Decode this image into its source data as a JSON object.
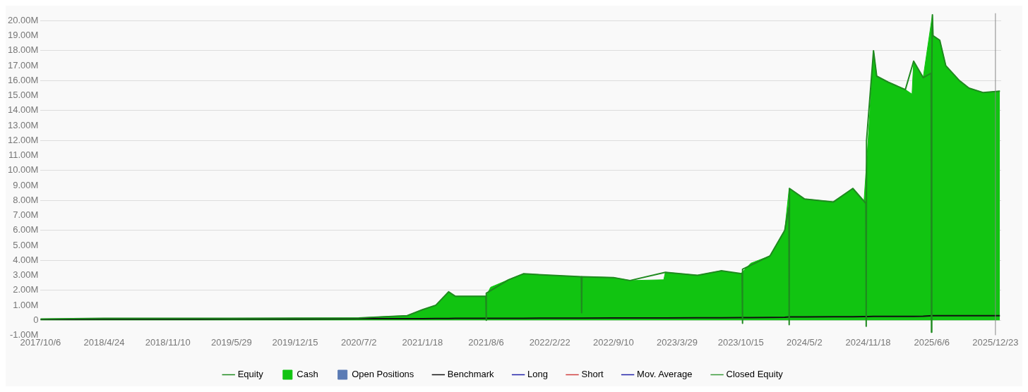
{
  "chart_data": {
    "type": "area",
    "x": [
      "2017-10-06",
      "2018-01-15",
      "2018-04-24",
      "2018-08-01",
      "2018-11-10",
      "2019-02-15",
      "2019-05-29",
      "2019-09-01",
      "2019-12-15",
      "2020-04-01",
      "2020-07-02",
      "2020-10-01",
      "2020-12-01",
      "2021-01-18",
      "2021-03-01",
      "2021-04-10",
      "2021-05-01",
      "2021-08-06",
      "2021-08-20",
      "2021-10-15",
      "2021-12-01",
      "2022-02-22",
      "2022-06-01",
      "2022-09-10",
      "2022-11-01",
      "2023-02-15",
      "2023-02-20",
      "2023-06-01",
      "2023-08-15",
      "2023-10-15",
      "2023-11-15",
      "2024-01-15",
      "2024-03-01",
      "2024-03-15",
      "2024-05-02",
      "2024-08-01",
      "2024-10-01",
      "2024-11-05",
      "2024-11-18",
      "2024-12-05",
      "2024-12-15",
      "2025-01-20",
      "2025-03-15",
      "2025-04-05",
      "2025-04-10",
      "2025-05-10",
      "2025-06-08",
      "2025-06-10",
      "2025-07-01",
      "2025-07-20",
      "2025-09-01",
      "2025-10-01",
      "2025-11-15",
      "2026-01-06"
    ],
    "xlim": [
      "2017-10-06",
      "2026-01-10"
    ],
    "xticks": [
      {
        "value": "2017-10-06",
        "label": "2017/10/6"
      },
      {
        "value": "2018-04-24",
        "label": "2018/4/24"
      },
      {
        "value": "2018-11-10",
        "label": "2018/11/10"
      },
      {
        "value": "2019-05-29",
        "label": "2019/5/29"
      },
      {
        "value": "2019-12-15",
        "label": "2019/12/15"
      },
      {
        "value": "2020-07-02",
        "label": "2020/7/2"
      },
      {
        "value": "2021-01-18",
        "label": "2021/1/18"
      },
      {
        "value": "2021-08-06",
        "label": "2021/8/6"
      },
      {
        "value": "2022-02-22",
        "label": "2022/2/22"
      },
      {
        "value": "2022-09-10",
        "label": "2022/9/10"
      },
      {
        "value": "2023-03-29",
        "label": "2023/3/29"
      },
      {
        "value": "2023-10-15",
        "label": "2023/10/15"
      },
      {
        "value": "2024-05-02",
        "label": "2024/5/2"
      },
      {
        "value": "2024-11-18",
        "label": "2024/11/18"
      },
      {
        "value": "2025-06-06",
        "label": "2025/6/6"
      },
      {
        "value": "2025-12-23",
        "label": "2025/12/23"
      }
    ],
    "ylim": [
      -1,
      20.5
    ],
    "yticks": [
      {
        "value": -1,
        "label": "-1.00M"
      },
      0,
      {
        "value": 1,
        "label": "1.00M"
      },
      {
        "value": 2,
        "label": "2.00M"
      },
      {
        "value": 3,
        "label": "3.00M"
      },
      {
        "value": 4,
        "label": "4.00M"
      },
      {
        "value": 5,
        "label": "5.00M"
      },
      {
        "value": 6,
        "label": "6.00M"
      },
      {
        "value": 7,
        "label": "7.00M"
      },
      {
        "value": 8,
        "label": "8.00M"
      },
      {
        "value": 9,
        "label": "9.00M"
      },
      {
        "value": 10,
        "label": "10.00M"
      },
      {
        "value": 11,
        "label": "11.00M"
      },
      {
        "value": 12,
        "label": "12.00M"
      },
      {
        "value": 13,
        "label": "13.00M"
      },
      {
        "value": 14,
        "label": "14.00M"
      },
      {
        "value": 15,
        "label": "15.00M"
      },
      {
        "value": 16,
        "label": "16.00M"
      },
      {
        "value": 17,
        "label": "17.00M"
      },
      {
        "value": 18,
        "label": "18.00M"
      },
      {
        "value": 19,
        "label": "19.00M"
      },
      {
        "value": 20,
        "label": "20.00M"
      }
    ],
    "grid": "y",
    "legend": "bottom",
    "ref_lines": [
      {
        "axis": "x",
        "value": "2025-12-23",
        "color": "#888888"
      }
    ],
    "series": [
      {
        "name": "Equity",
        "type": "line",
        "color": "#1f8a1f",
        "x": [
          "2017-10-06",
          "2018-04-24",
          "2019-05-29",
          "2020-07-02",
          "2020-12-01",
          "2021-01-18",
          "2021-03-01",
          "2021-04-10",
          "2021-05-01",
          "2021-08-05",
          "2021-08-06",
          "2021-08-07",
          "2021-10-15",
          "2021-12-01",
          "2022-06-01",
          "2022-06-02",
          "2022-06-03",
          "2022-09-10",
          "2022-11-01",
          "2023-02-20",
          "2023-06-01",
          "2023-08-15",
          "2023-10-19",
          "2023-10-20",
          "2023-10-21",
          "2024-01-15",
          "2024-03-01",
          "2024-03-14",
          "2024-03-15",
          "2024-03-16",
          "2024-05-02",
          "2024-08-01",
          "2024-10-01",
          "2024-11-11",
          "2024-11-12",
          "2024-11-13",
          "2024-12-05",
          "2024-12-15",
          "2025-01-20",
          "2025-03-15",
          "2025-04-10",
          "2025-05-10",
          "2025-06-04",
          "2025-06-05",
          "2025-06-06",
          "2025-06-08",
          "2025-06-10",
          "2025-07-01",
          "2025-07-20",
          "2025-09-01",
          "2025-10-01",
          "2025-11-15",
          "2026-01-06"
        ],
        "values": [
          0.08,
          0.12,
          0.12,
          0.15,
          0.3,
          0.7,
          1.0,
          1.9,
          1.6,
          1.6,
          0.0,
          1.8,
          2.7,
          3.1,
          2.9,
          0.5,
          2.9,
          2.85,
          2.65,
          3.2,
          3.0,
          3.3,
          3.1,
          -0.2,
          3.4,
          4.3,
          6.0,
          7.5,
          -0.3,
          8.8,
          8.1,
          7.9,
          8.8,
          7.8,
          -0.4,
          12.0,
          18.0,
          16.3,
          15.9,
          15.4,
          17.3,
          16.2,
          16.5,
          -0.8,
          17.0,
          20.4,
          19.0,
          18.7,
          17.0,
          16.0,
          15.5,
          15.2,
          15.3
        ]
      },
      {
        "name": "Cash",
        "color": "#11c411",
        "values": [
          0.08,
          0.1,
          0.12,
          0.11,
          0.1,
          0.11,
          0.12,
          0.12,
          0.13,
          0.14,
          0.15,
          0.25,
          0.3,
          0.7,
          1.0,
          1.9,
          1.6,
          1.6,
          2.2,
          2.7,
          3.1,
          3.0,
          2.9,
          2.85,
          2.65,
          2.7,
          3.2,
          3.0,
          3.3,
          3.1,
          3.8,
          4.3,
          6.0,
          8.8,
          8.1,
          7.9,
          8.8,
          7.9,
          12.0,
          18.0,
          16.3,
          15.9,
          15.4,
          15.1,
          17.3,
          16.2,
          20.4,
          19.0,
          18.7,
          17.0,
          16.0,
          15.5,
          15.2,
          15.3
        ]
      },
      {
        "name": "Open Positions",
        "type": "area",
        "color": "#5b7bb5",
        "values": [
          null,
          null,
          null,
          null,
          null,
          null,
          null,
          null,
          null,
          null,
          null,
          null,
          null,
          null,
          null,
          null,
          null,
          null,
          null,
          null,
          null,
          null,
          null,
          null,
          null,
          null,
          null,
          null,
          null,
          null,
          null,
          null,
          null,
          null,
          null,
          null,
          null,
          null,
          null,
          null,
          null,
          null,
          null,
          null,
          null,
          null,
          null,
          null,
          null,
          null,
          null,
          null,
          null,
          null
        ]
      },
      {
        "name": "Benchmark",
        "type": "line",
        "color": "#111111",
        "values": [
          0.06,
          0.06,
          0.07,
          0.07,
          0.07,
          0.07,
          0.08,
          0.08,
          0.08,
          0.09,
          0.1,
          0.1,
          0.1,
          0.1,
          0.11,
          0.11,
          0.12,
          0.12,
          0.12,
          0.13,
          0.13,
          0.14,
          0.14,
          0.15,
          0.15,
          0.15,
          0.15,
          0.16,
          0.16,
          0.17,
          0.17,
          0.18,
          0.2,
          0.22,
          0.22,
          0.23,
          0.23,
          0.24,
          0.24,
          0.25,
          0.25,
          0.25,
          0.26,
          0.26,
          0.26,
          0.27,
          0.3,
          0.3,
          0.3,
          0.3,
          0.3,
          0.3,
          0.3,
          0.3
        ]
      },
      {
        "name": "Long",
        "type": "line",
        "color": "#2222aa",
        "values": [
          null,
          null,
          null,
          null,
          null,
          null,
          null,
          null,
          null,
          null,
          null,
          null,
          null,
          null,
          null,
          null,
          null,
          null,
          null,
          null,
          null,
          null,
          null,
          null,
          null,
          null,
          null,
          null,
          null,
          null,
          null,
          null,
          null,
          null,
          null,
          null,
          null,
          null,
          null,
          null,
          null,
          null,
          null,
          null,
          null,
          null,
          null,
          null,
          null,
          null,
          null,
          null,
          null,
          null
        ]
      },
      {
        "name": "Short",
        "type": "line",
        "color": "#d04040",
        "values": [
          null,
          null,
          null,
          null,
          null,
          null,
          null,
          null,
          null,
          null,
          null,
          null,
          null,
          null,
          null,
          null,
          null,
          null,
          null,
          null,
          null,
          null,
          null,
          null,
          null,
          null,
          null,
          null,
          null,
          null,
          null,
          null,
          null,
          null,
          null,
          null,
          null,
          null,
          null,
          null,
          null,
          null,
          null,
          null,
          null,
          null,
          null,
          null,
          null,
          null,
          null,
          null,
          null,
          null
        ]
      },
      {
        "name": "Mov. Average",
        "type": "line",
        "color": "#2222aa",
        "values": [
          null,
          null,
          null,
          null,
          null,
          null,
          null,
          null,
          null,
          null,
          null,
          null,
          null,
          null,
          null,
          null,
          null,
          null,
          null,
          null,
          null,
          null,
          null,
          null,
          null,
          null,
          null,
          null,
          null,
          null,
          null,
          null,
          null,
          null,
          null,
          null,
          null,
          null,
          null,
          null,
          null,
          null,
          null,
          null,
          null,
          null,
          null,
          null,
          null,
          null,
          null,
          null,
          null,
          null
        ]
      },
      {
        "name": "Closed Equity",
        "type": "line",
        "color": "#3a9a3a",
        "values": [
          null,
          null,
          null,
          null,
          null,
          null,
          null,
          null,
          null,
          null,
          null,
          null,
          null,
          null,
          null,
          null,
          null,
          null,
          null,
          null,
          null,
          null,
          null,
          null,
          null,
          null,
          null,
          null,
          null,
          null,
          null,
          null,
          null,
          null,
          null,
          null,
          null,
          null,
          null,
          null,
          null,
          null,
          null,
          null,
          null,
          null,
          null,
          null,
          null,
          null,
          null,
          null,
          null,
          null
        ]
      }
    ]
  }
}
